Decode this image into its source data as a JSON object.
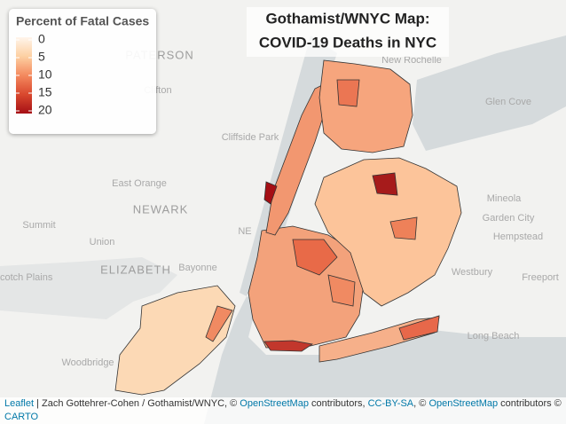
{
  "title": [
    "Gothamist/WNYC Map:",
    "COVID-19 Deaths in NYC"
  ],
  "legend": {
    "title": "Percent of Fatal Cases",
    "lim": [
      0,
      20
    ],
    "ticks": [
      0,
      5,
      10,
      15,
      20
    ],
    "colors": [
      "#fff5eb",
      "#fdd0a2",
      "#f4895e",
      "#d9482e",
      "#a50f15"
    ]
  },
  "places": [
    "PATERSON",
    "New Rochelle",
    "Clifton",
    "Cliffside Park",
    "East Orange",
    "NEWARK",
    "Summit",
    "Union",
    "ELIZABETH",
    "Bayonne",
    "Scotch Plains",
    "Woodbridge",
    "Glen Cove",
    "Mineola",
    "Garden City",
    "Hempstead",
    "Westbury",
    "Freeport",
    "Long Beach",
    "NE"
  ],
  "attribution": {
    "leaflet": "Leaflet",
    "sep1": " | Zach Gottehrer-Cohen / Gothamist/WNYC, © ",
    "osm1": "OpenStreetMap",
    "sep2": " contributors, ",
    "cc": "CC-BY-SA",
    "sep3": ", © ",
    "osm2": "OpenStreetMap",
    "sep4": " contributors © ",
    "carto": "CARTO"
  }
}
